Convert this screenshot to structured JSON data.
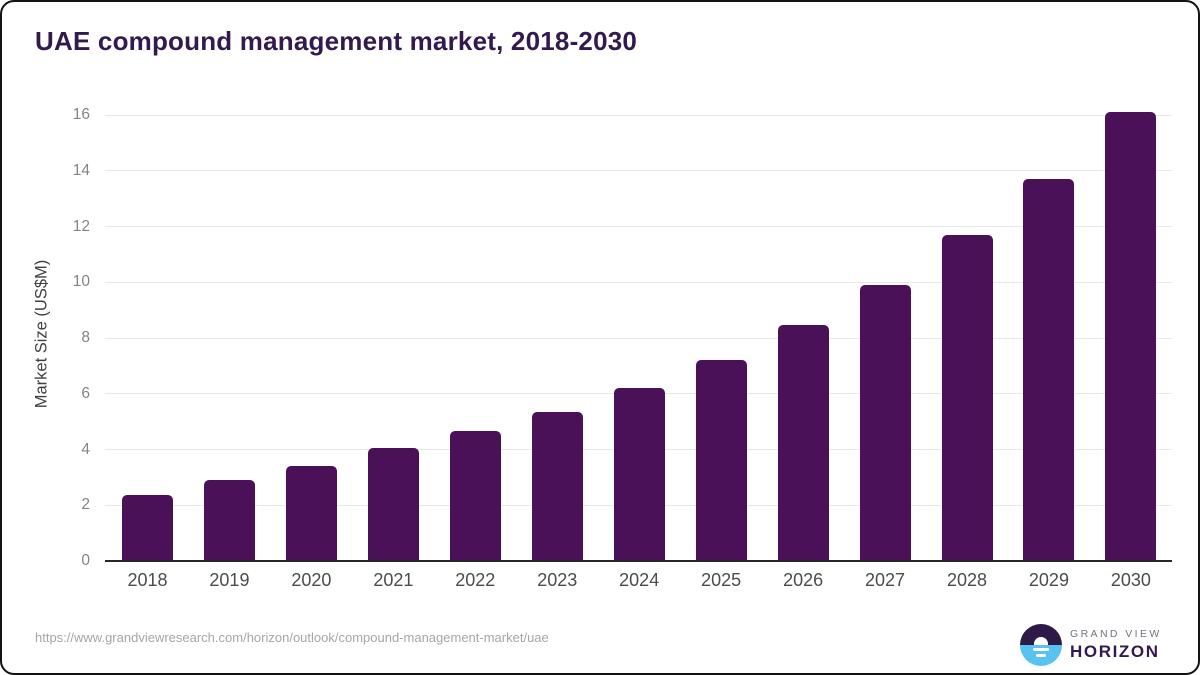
{
  "chart_data": {
    "type": "bar",
    "title": "UAE compound management market, 2018-2030",
    "categories": [
      "2018",
      "2019",
      "2020",
      "2021",
      "2022",
      "2023",
      "2024",
      "2025",
      "2026",
      "2027",
      "2028",
      "2029",
      "2030"
    ],
    "values": [
      2.35,
      2.9,
      3.4,
      4.05,
      4.65,
      5.35,
      6.2,
      7.2,
      8.45,
      9.9,
      11.7,
      13.7,
      16.1
    ],
    "xlabel": "",
    "ylabel": "Market Size (US$M)",
    "yticks": [
      0,
      2,
      4,
      6,
      8,
      10,
      12,
      14,
      16
    ],
    "ylim": [
      0,
      16.4
    ],
    "grid": true,
    "legend_position": "none",
    "bar_color": "#4a1158"
  },
  "footer": {
    "source_url": "https://www.grandviewresearch.com/horizon/outlook/compound-management-market/uae",
    "logo": {
      "line1": "GRAND VIEW",
      "line2": "HORIZON"
    }
  },
  "colors": {
    "title": "#331a4d",
    "bar": "#4a1158",
    "gridline": "#e8e8e8",
    "axis_line": "#262626",
    "ytick_label": "#848484",
    "xtick_label": "#4c4c4c",
    "source_url": "#a6a6a6",
    "logo_blue": "#58c3f0",
    "logo_dark_purple": "#2e1a47"
  }
}
